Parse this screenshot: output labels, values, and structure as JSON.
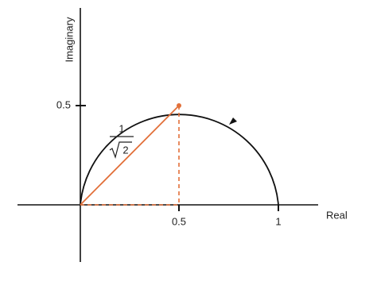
{
  "axes": {
    "x_label": "Real",
    "y_label": "Imaginary"
  },
  "ticks": {
    "y_half": "0.5",
    "x_half": "0.5",
    "x_one": "1"
  },
  "fraction": {
    "numerator": "1",
    "radicand": "2"
  }
}
